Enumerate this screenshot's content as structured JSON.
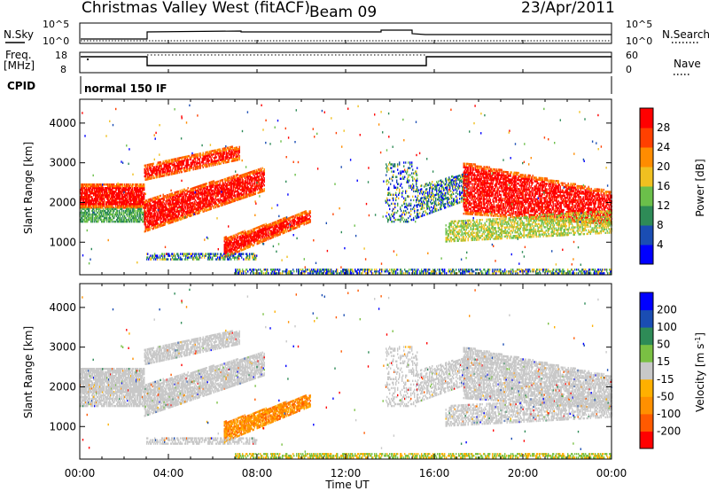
{
  "header": {
    "station": "Christmas Valley West (fitACF)",
    "beam": "Beam 09",
    "date": "23/Apr/2011"
  },
  "status_panels": {
    "nsky_label": "N.Sky",
    "nsky_ticks": [
      "10^5",
      "10^0"
    ],
    "nsearch_label": "N.Search",
    "nsearch_ticks": [
      "10^5",
      "10^0"
    ],
    "freq_label_line1": "Freq.",
    "freq_label_line2": "[MHz]",
    "freq_ticks": [
      "18",
      "8"
    ],
    "nave_label": "Nave",
    "nave_ticks": [
      "60",
      "0"
    ],
    "cpid_label": "CPID",
    "cpid_value": "normal 150 IF"
  },
  "colors": {
    "power_scale": [
      "#0000ff",
      "#1a4db3",
      "#2e8b57",
      "#6bbf4a",
      "#f0c020",
      "#ff8c00",
      "#ff4000",
      "#ff0000"
    ],
    "velocity_scale": [
      "#ff0000",
      "#ff5a00",
      "#ff9000",
      "#ffb000",
      "#c8c8c8",
      "#7ac043",
      "#2e8b57",
      "#1a4db3",
      "#0000ff"
    ],
    "ground_scatter": "#c8c8c8"
  },
  "chart_data": [
    {
      "type": "heatmap",
      "name": "power",
      "xlabel": "",
      "ylabel": "Slant Range [km]",
      "x_ticks": [
        "00:00",
        "04:00",
        "08:00",
        "12:00",
        "16:00",
        "20:00",
        "00:00"
      ],
      "y_ticks": [
        1000,
        2000,
        3000,
        4000
      ],
      "xlim": [
        0,
        24
      ],
      "ylim": [
        180,
        4600
      ],
      "colorbar_label": "Power [dB]",
      "colorbar_ticks": [
        4,
        8,
        12,
        16,
        20,
        24,
        28
      ],
      "colorbar_range": [
        0,
        32
      ]
    },
    {
      "type": "heatmap",
      "name": "velocity",
      "xlabel": "Time UT",
      "ylabel": "Slant Range [km]",
      "x_ticks": [
        "00:00",
        "04:00",
        "08:00",
        "12:00",
        "16:00",
        "20:00",
        "00:00"
      ],
      "y_ticks": [
        1000,
        2000,
        3000,
        4000
      ],
      "xlim": [
        0,
        24
      ],
      "ylim": [
        180,
        4600
      ],
      "colorbar_label": "Velocity [m s",
      "colorbar_label_sup": "-1",
      "colorbar_label_end": "]",
      "colorbar_ticks": [
        200,
        100,
        50,
        15,
        -15,
        -50,
        -100,
        -200
      ]
    }
  ]
}
